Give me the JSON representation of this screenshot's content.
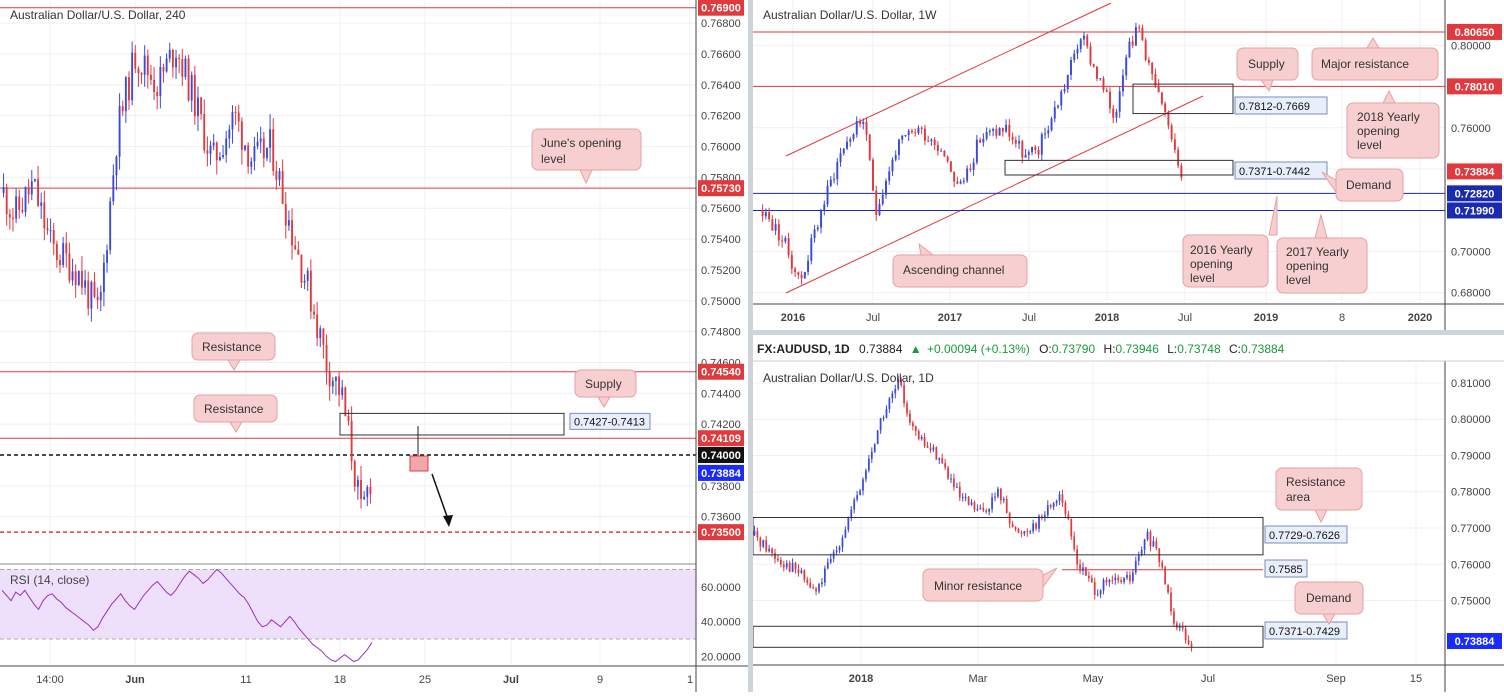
{
  "colors": {
    "up": "#3b4bd8",
    "down": "#e0393e",
    "resistance_line": "#e0393e",
    "support_line": "#1a2bb0",
    "price_label": "#1a2bff",
    "callout_fill": "#f8cfd0",
    "callout_stroke": "#e6a0a3",
    "rsi_band": "#eee0fb",
    "rsi_line": "#9b2fc4",
    "zone_fill": "#f3a7aa"
  },
  "chart_data": [
    {
      "id": "h4",
      "type": "candlestick",
      "title": "Australian Dollar/U.S. Dollar, 240",
      "ylim": [
        0.733,
        0.7695
      ],
      "y_ticks": [
        "0.76800",
        "0.76600",
        "0.76400",
        "0.76200",
        "0.76000",
        "0.75800",
        "0.75600",
        "0.75400",
        "0.75200",
        "0.75000",
        "0.74800",
        "0.74600",
        "0.74400",
        "0.74200",
        "0.73800",
        "0.73600"
      ],
      "x_ticks": [
        "14:00",
        "Jun",
        "11",
        "18",
        "25",
        "Jul",
        "9",
        "1"
      ],
      "levels": [
        {
          "value": "0.76900",
          "price": 0.769,
          "style": "solid"
        },
        {
          "value": "0.75730",
          "price": 0.7573,
          "style": "solid"
        },
        {
          "value": "0.74540",
          "price": 0.7454,
          "style": "solid"
        },
        {
          "value": "0.74109",
          "price": 0.74109,
          "style": "solid"
        },
        {
          "value": "0.74000",
          "price": 0.74,
          "style": "dashed-black"
        },
        {
          "value": "0.73500",
          "price": 0.735,
          "style": "dashed-red"
        }
      ],
      "current_price": "0.73884",
      "zone": {
        "label": "0.7427-0.7413",
        "top": 0.7427,
        "bottom": 0.7413
      },
      "callouts": [
        "June's opening level",
        "Resistance",
        "Resistance",
        "Supply"
      ],
      "rsi": {
        "label": "RSI (14, close)",
        "ticks": [
          "60.0000",
          "40.0000",
          "20.0000"
        ],
        "ylim": [
          15,
          72
        ],
        "band": [
          30,
          70
        ],
        "values": [
          58,
          55,
          52,
          57,
          55,
          58,
          54,
          50,
          47,
          52,
          55,
          56,
          53,
          51,
          48,
          46,
          44,
          42,
          40,
          38,
          35,
          37,
          42,
          46,
          50,
          53,
          56,
          52,
          49,
          47,
          51,
          55,
          58,
          61,
          63,
          60,
          57,
          55,
          58,
          62,
          66,
          69,
          67,
          65,
          62,
          64,
          67,
          70,
          68,
          65,
          62,
          59,
          56,
          54,
          50,
          45,
          40,
          37,
          38,
          41,
          39,
          37,
          40,
          43,
          40,
          36,
          33,
          30,
          27,
          25,
          23,
          20,
          18,
          17,
          19,
          21,
          19,
          17,
          18,
          21,
          24,
          28
        ]
      }
    },
    {
      "id": "w1",
      "type": "candlestick",
      "title": "Australian Dollar/U.S. Dollar, 1W",
      "ylim": [
        0.675,
        0.822
      ],
      "y_ticks": [
        "0.80000",
        "0.78000",
        "0.76000",
        "0.74000",
        "0.70000",
        "0.68000"
      ],
      "x_ticks": [
        "2016",
        "Jul",
        "2017",
        "Jul",
        "2018",
        "Jul",
        "2019",
        "8",
        "2020"
      ],
      "levels": [
        {
          "value": "0.80650",
          "price": 0.8065,
          "style": "red"
        },
        {
          "value": "0.78010",
          "price": 0.7801,
          "style": "red"
        },
        {
          "value": "0.72820",
          "price": 0.7282,
          "style": "blue"
        },
        {
          "value": "0.71990",
          "price": 0.7199,
          "style": "blue"
        }
      ],
      "current_price": "0.73884",
      "zones": [
        {
          "label": "0.7812-0.7669",
          "top": 0.7812,
          "bottom": 0.7669
        },
        {
          "label": "0.7371-0.7442",
          "top": 0.7442,
          "bottom": 0.7371
        }
      ],
      "callouts": [
        "Supply",
        "Major resistance",
        "2018 Yearly opening level",
        "Demand",
        "2016 Yearly opening level",
        "2017 Yearly opening level",
        "Ascending channel"
      ]
    },
    {
      "id": "d1",
      "type": "candlestick",
      "title": "Australian Dollar/U.S. Dollar, 1D",
      "header": {
        "symbol": "FX:AUDUSD, 1D",
        "last": "0.73884",
        "change": "+0.00094 (+0.13%)",
        "o": "0.73790",
        "h": "0.73946",
        "l": "0.73748",
        "c": "0.73884"
      },
      "ylim": [
        0.7325,
        0.8155
      ],
      "y_ticks": [
        "0.81000",
        "0.80000",
        "0.79000",
        "0.78000",
        "0.77000",
        "0.76000",
        "0.75000"
      ],
      "x_ticks": [
        "2018",
        "Mar",
        "May",
        "Jul",
        "Sep",
        "15"
      ],
      "levels": [
        {
          "value": "0.7585",
          "price": 0.7585,
          "style": "red"
        }
      ],
      "current_price": "0.73884",
      "zones": [
        {
          "label": "0.7729-0.7626",
          "top": 0.7729,
          "bottom": 0.7626
        },
        {
          "label": "0.7371-0.7429",
          "top": 0.7429,
          "bottom": 0.7371
        }
      ],
      "callouts": [
        "Resistance area",
        "Minor resistance",
        "Demand"
      ]
    }
  ],
  "labels": {
    "d1_o_key": "O:",
    "d1_h_key": "H:",
    "d1_l_key": "L:",
    "d1_c_key": "C:",
    "rsi_label": "RSI (14, close)"
  }
}
